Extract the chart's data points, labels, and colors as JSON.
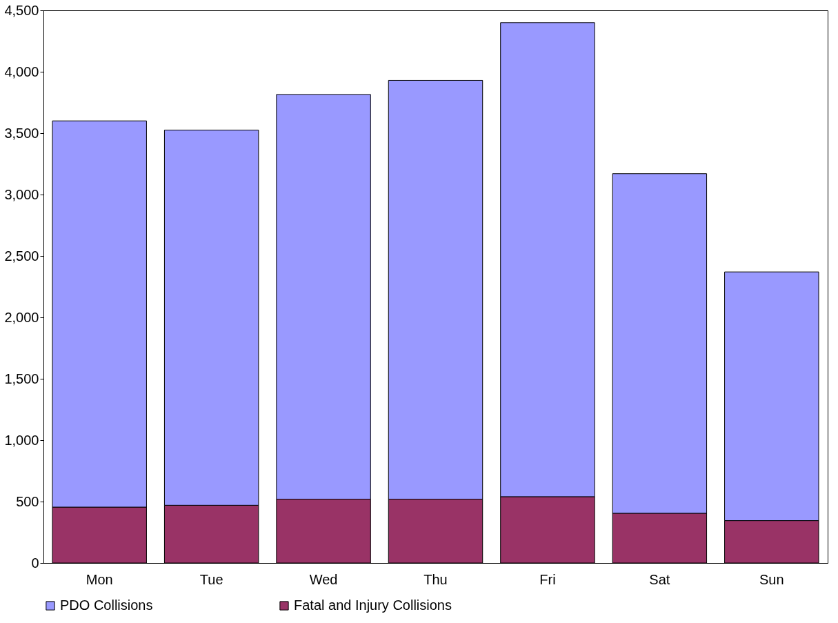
{
  "chart_data": {
    "type": "bar",
    "stacked": true,
    "categories": [
      "Mon",
      "Tue",
      "Wed",
      "Thu",
      "Fri",
      "Sat",
      "Sun"
    ],
    "series": [
      {
        "name": "Fatal and Injury Collisions",
        "color": "#993366",
        "values": [
          455,
          470,
          520,
          520,
          540,
          405,
          345
        ]
      },
      {
        "name": "PDO Collisions",
        "color": "#9999ff",
        "values": [
          3145,
          3055,
          3295,
          3410,
          3860,
          2765,
          2025
        ]
      }
    ],
    "ylim": [
      0,
      4500
    ],
    "yticks": [
      0,
      {
        "value": 500,
        "label": "500"
      },
      {
        "value": 1000,
        "label": "1,000"
      },
      {
        "value": 1500,
        "label": "1,500"
      },
      {
        "value": 2000,
        "label": "2,000"
      },
      {
        "value": 2500,
        "label": "2,500"
      },
      {
        "value": 3000,
        "label": "3,000"
      },
      {
        "value": 3500,
        "label": "3,500"
      },
      {
        "value": 4000,
        "label": "4,000"
      },
      {
        "value": 4500,
        "label": "4,500"
      }
    ],
    "grid": false,
    "legend": "bottom"
  }
}
